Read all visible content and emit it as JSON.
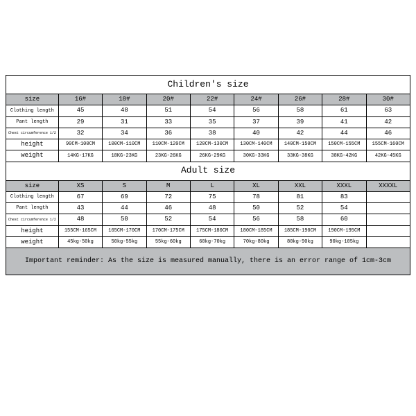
{
  "children": {
    "title": "Children's size",
    "cols": [
      "16#",
      "18#",
      "20#",
      "22#",
      "24#",
      "26#",
      "28#",
      "30#"
    ],
    "rows": [
      {
        "label": "size",
        "is_header": true
      },
      {
        "label": "Clothing length",
        "vals": [
          "45",
          "48",
          "51",
          "54",
          "56",
          "58",
          "61",
          "63"
        ]
      },
      {
        "label": "Pant length",
        "vals": [
          "29",
          "31",
          "33",
          "35",
          "37",
          "39",
          "41",
          "42"
        ]
      },
      {
        "label": "Chest circumference 1/2",
        "vals": [
          "32",
          "34",
          "36",
          "38",
          "40",
          "42",
          "44",
          "46"
        ],
        "tiny": true
      },
      {
        "label": "height",
        "vals": [
          "90CM-100CM",
          "100CM-110CM",
          "110CM-120CM",
          "120CM-130CM",
          "130CM-140CM",
          "140CM-150CM",
          "150CM-155CM",
          "155CM-160CM"
        ]
      },
      {
        "label": "weight",
        "vals": [
          "14KG-17KG",
          "18KG-23KG",
          "23KG-26KG",
          "26KG-29KG",
          "30KG-33KG",
          "33KG-38KG",
          "38KG-42KG",
          "42KG-45KG"
        ]
      }
    ]
  },
  "adult": {
    "title": "Adult size",
    "cols": [
      "XS",
      "S",
      "M",
      "L",
      "XL",
      "XXL",
      "XXXL",
      "XXXXL"
    ],
    "rows": [
      {
        "label": "size",
        "is_header": true
      },
      {
        "label": "Clothing length",
        "vals": [
          "67",
          "69",
          "72",
          "75",
          "78",
          "81",
          "83",
          ""
        ]
      },
      {
        "label": "Pant length",
        "vals": [
          "43",
          "44",
          "46",
          "48",
          "50",
          "52",
          "54",
          ""
        ]
      },
      {
        "label": "Chest circumference 1/2",
        "vals": [
          "48",
          "50",
          "52",
          "54",
          "56",
          "58",
          "60",
          ""
        ],
        "tiny": true
      },
      {
        "label": "height",
        "vals": [
          "155CM-165CM",
          "165CM-170CM",
          "170CM-175CM",
          "175CM-180CM",
          "180CM-185CM",
          "185CM-190CM",
          "190CM-195CM",
          ""
        ]
      },
      {
        "label": "weight",
        "vals": [
          "45kg-50kg",
          "50kg-55kg",
          "55kg-60kg",
          "60kg-70kg",
          "70kg-80kg",
          "80kg-90kg",
          "90kg-105kg",
          ""
        ]
      }
    ]
  },
  "reminder": "Important reminder: As the size is measured manually, there is an error range of 1cm-3cm"
}
